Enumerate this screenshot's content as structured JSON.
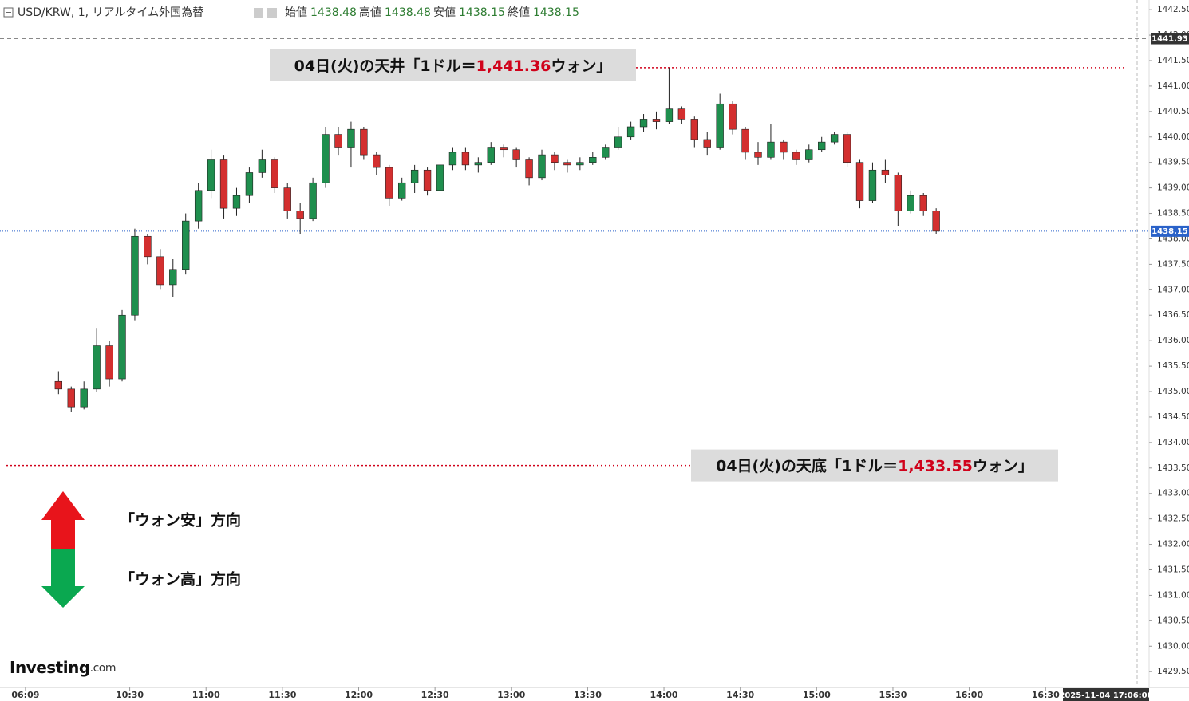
{
  "chart_data": {
    "type": "candlestick",
    "title": "USD/KRW, 1, リアルタイム外国為替",
    "ohlc_header": [
      {
        "label": "始値",
        "value": 1438.48
      },
      {
        "label": "高値",
        "value": 1438.48
      },
      {
        "label": "安値",
        "value": 1438.15
      },
      {
        "label": "終値",
        "value": 1438.15
      }
    ],
    "up_color": "#1f8f4e",
    "down_color": "#d32f2f",
    "x": [
      13,
      18,
      23,
      28,
      33,
      38,
      43,
      48,
      53,
      58,
      63,
      68,
      73,
      78,
      83,
      88,
      93,
      98,
      103,
      108,
      113,
      118,
      123,
      128,
      133,
      138,
      143,
      148,
      153,
      158,
      163,
      168,
      173,
      178,
      183,
      188,
      193,
      198,
      203,
      208,
      213,
      218,
      223,
      228,
      233,
      238,
      243,
      248,
      253,
      258,
      263,
      268,
      273,
      278,
      283,
      288,
      293,
      298,
      303,
      308,
      313,
      318,
      323,
      328,
      333,
      338,
      343,
      348,
      353,
      358
    ],
    "open": [
      1435.2,
      1435.05,
      1434.7,
      1435.05,
      1435.9,
      1435.25,
      1436.5,
      1438.05,
      1437.65,
      1437.1,
      1437.4,
      1438.35,
      1438.95,
      1439.55,
      1438.6,
      1438.85,
      1439.3,
      1439.55,
      1439.0,
      1438.55,
      1438.4,
      1439.1,
      1440.05,
      1439.8,
      1440.15,
      1439.65,
      1439.4,
      1438.8,
      1439.1,
      1439.35,
      1438.95,
      1439.45,
      1439.7,
      1439.45,
      1439.5,
      1439.8,
      1439.75,
      1439.55,
      1439.2,
      1439.65,
      1439.5,
      1439.45,
      1439.5,
      1439.6,
      1439.8,
      1440.0,
      1440.2,
      1440.35,
      1440.3,
      1440.55,
      1440.35,
      1439.95,
      1439.8,
      1440.65,
      1440.15,
      1439.7,
      1439.6,
      1439.9,
      1439.7,
      1439.55,
      1439.75,
      1439.9,
      1440.05,
      1439.5,
      1438.75,
      1439.35,
      1439.25,
      1438.55,
      1438.85,
      1438.55
    ],
    "high": [
      1435.4,
      1435.1,
      1435.2,
      1436.25,
      1436.0,
      1436.6,
      1438.2,
      1438.1,
      1437.8,
      1437.6,
      1438.5,
      1439.1,
      1439.75,
      1439.65,
      1439.0,
      1439.4,
      1439.75,
      1439.6,
      1439.1,
      1438.7,
      1439.2,
      1440.2,
      1440.2,
      1440.3,
      1440.2,
      1439.7,
      1439.45,
      1439.2,
      1439.45,
      1439.4,
      1439.55,
      1439.8,
      1439.8,
      1439.6,
      1439.9,
      1439.85,
      1439.8,
      1439.6,
      1439.75,
      1439.7,
      1439.55,
      1439.6,
      1439.7,
      1439.85,
      1440.2,
      1440.3,
      1440.45,
      1440.5,
      1441.36,
      1440.6,
      1440.4,
      1440.1,
      1440.85,
      1440.7,
      1440.2,
      1439.9,
      1440.25,
      1439.95,
      1439.75,
      1439.85,
      1440.0,
      1440.1,
      1440.1,
      1439.55,
      1439.5,
      1439.55,
      1439.3,
      1438.95,
      1438.9,
      1438.6
    ],
    "low": [
      1434.95,
      1434.6,
      1434.65,
      1435.0,
      1435.1,
      1435.2,
      1436.4,
      1437.5,
      1437.0,
      1436.85,
      1437.3,
      1438.2,
      1438.8,
      1438.4,
      1438.45,
      1438.7,
      1439.2,
      1438.9,
      1438.4,
      1438.1,
      1438.35,
      1439.0,
      1439.65,
      1439.4,
      1439.55,
      1439.25,
      1438.65,
      1438.75,
      1438.9,
      1438.85,
      1438.9,
      1439.35,
      1439.35,
      1439.3,
      1439.45,
      1439.6,
      1439.4,
      1439.05,
      1439.15,
      1439.35,
      1439.3,
      1439.35,
      1439.45,
      1439.55,
      1439.75,
      1439.95,
      1440.1,
      1440.15,
      1440.25,
      1440.25,
      1439.8,
      1439.65,
      1439.75,
      1440.05,
      1439.55,
      1439.45,
      1439.55,
      1439.55,
      1439.45,
      1439.5,
      1439.7,
      1439.85,
      1439.4,
      1438.6,
      1438.7,
      1439.1,
      1438.25,
      1438.5,
      1438.45,
      1438.1
    ],
    "close": [
      1435.05,
      1434.7,
      1435.05,
      1435.9,
      1435.25,
      1436.5,
      1438.05,
      1437.65,
      1437.1,
      1437.4,
      1438.35,
      1438.95,
      1439.55,
      1438.6,
      1438.85,
      1439.3,
      1439.55,
      1439.0,
      1438.55,
      1438.4,
      1439.1,
      1440.05,
      1439.8,
      1440.15,
      1439.65,
      1439.4,
      1438.8,
      1439.1,
      1439.35,
      1438.95,
      1439.45,
      1439.7,
      1439.45,
      1439.5,
      1439.8,
      1439.75,
      1439.55,
      1439.2,
      1439.65,
      1439.5,
      1439.45,
      1439.5,
      1439.6,
      1439.8,
      1440.0,
      1440.2,
      1440.35,
      1440.3,
      1440.55,
      1440.35,
      1439.95,
      1439.8,
      1440.65,
      1440.15,
      1439.7,
      1439.6,
      1439.9,
      1439.7,
      1439.55,
      1439.75,
      1439.9,
      1440.05,
      1439.5,
      1438.75,
      1439.35,
      1439.25,
      1438.55,
      1438.85,
      1438.55,
      1438.15
    ],
    "xlim": [
      -10,
      437
    ],
    "xticks": [
      {
        "value": 0,
        "label": "06:09"
      },
      {
        "value": 41,
        "label": "10:30"
      },
      {
        "value": 71,
        "label": "11:00"
      },
      {
        "value": 101,
        "label": "11:30"
      },
      {
        "value": 131,
        "label": "12:00"
      },
      {
        "value": 161,
        "label": "12:30"
      },
      {
        "value": 191,
        "label": "13:00"
      },
      {
        "value": 221,
        "label": "13:30"
      },
      {
        "value": 251,
        "label": "14:00"
      },
      {
        "value": 281,
        "label": "14:30"
      },
      {
        "value": 311,
        "label": "15:00"
      },
      {
        "value": 341,
        "label": "15:30"
      },
      {
        "value": 371,
        "label": "16:00"
      },
      {
        "value": 401,
        "label": "16:30"
      }
    ],
    "ylim": [
      1429.19,
      1442.69
    ],
    "yticks": [
      {
        "value": 1429.5,
        "label": "1429.50"
      },
      {
        "value": 1430,
        "label": "1430.00"
      },
      {
        "value": 1430.5,
        "label": "1430.50"
      },
      {
        "value": 1431,
        "label": "1431.00"
      },
      {
        "value": 1431.5,
        "label": "1431.50"
      },
      {
        "value": 1432,
        "label": "1432.00"
      },
      {
        "value": 1432.5,
        "label": "1432.50"
      },
      {
        "value": 1433,
        "label": "1433.00"
      },
      {
        "value": 1433.5,
        "label": "1433.50"
      },
      {
        "value": 1434,
        "label": "1434.00"
      },
      {
        "value": 1434.5,
        "label": "1434.50"
      },
      {
        "value": 1435,
        "label": "1435.00"
      },
      {
        "value": 1435.5,
        "label": "1435.50"
      },
      {
        "value": 1436,
        "label": "1436.00"
      },
      {
        "value": 1436.5,
        "label": "1436.50"
      },
      {
        "value": 1437,
        "label": "1437.00"
      },
      {
        "value": 1437.5,
        "label": "1437.50"
      },
      {
        "value": 1438,
        "label": "1438.00"
      },
      {
        "value": 1438.5,
        "label": "1438.50"
      },
      {
        "value": 1439,
        "label": "1439.00"
      },
      {
        "value": 1439.5,
        "label": "1439.50"
      },
      {
        "value": 1440,
        "label": "1440.00"
      },
      {
        "value": 1440.5,
        "label": "1440.50"
      },
      {
        "value": 1441,
        "label": "1441.00"
      },
      {
        "value": 1441.5,
        "label": "1441.50"
      },
      {
        "value": 1442,
        "label": "1442.00"
      },
      {
        "value": 1442.5,
        "label": "1442.50"
      }
    ],
    "marker_prices": [
      1441.93,
      1438.15
    ],
    "annotations": [
      {
        "level": 1441.36,
        "text_before": "04日(火)の天井「1ドル＝",
        "value_label": "1,441.36",
        "text_after": "ウォン」"
      },
      {
        "level": 1433.55,
        "text_before": "04日(火)の天底「1ドル＝",
        "value_label": "1,433.55",
        "text_after": "ウォン」"
      }
    ],
    "direction_labels": [
      "「ウォン安」方向",
      "「ウォン高」方向"
    ],
    "brand": "Investing",
    "brand_suffix": ".com",
    "cursor_label": "2025-11-04 17:06:00"
  }
}
